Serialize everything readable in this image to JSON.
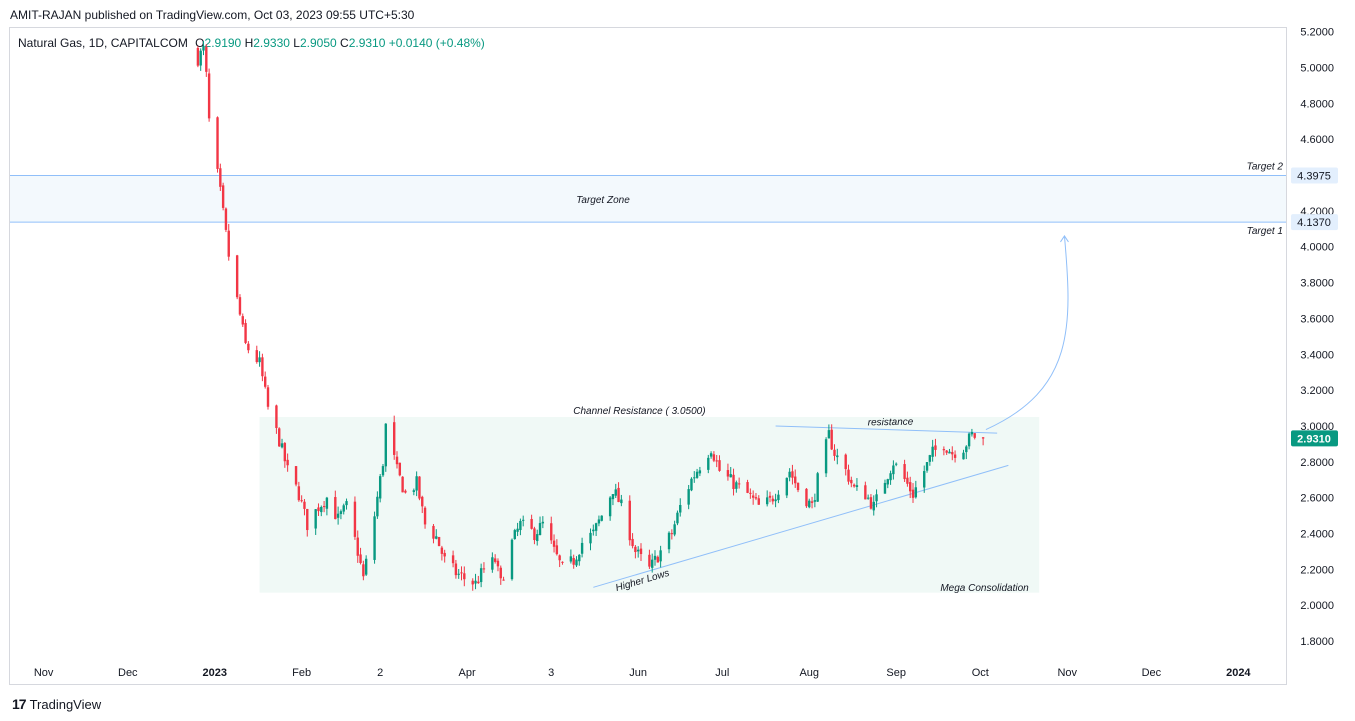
{
  "publisher_line": "AMIT-RAJAN published on TradingView.com, Oct 03, 2023 09:55 UTC+5:30",
  "legend": {
    "symbol": "Natural Gas, 1D, CAPITALCOM",
    "open_label": "O",
    "open": "2.9190",
    "high_label": "H",
    "high": "2.9330",
    "low_label": "L",
    "low": "2.9050",
    "close_label": "C",
    "close": "2.9310",
    "change": "+0.0140 (+0.48%)"
  },
  "footer_brand": "TradingView",
  "colors": {
    "up": "#089981",
    "down": "#f23645",
    "zone_line": "#90bff9",
    "zone_fill": "#f3f9fd",
    "consolidation_fill": "#f0f9f6",
    "trendline": "#90bff9",
    "price_badge": "#089981"
  },
  "chart_data": {
    "type": "candlestick",
    "title": "Natural Gas, 1D, CAPITALCOM",
    "x_ticks": [
      {
        "label": "Nov",
        "date": "2022-11-01",
        "bold": false
      },
      {
        "label": "Dec",
        "date": "2022-12-01",
        "bold": false
      },
      {
        "label": "2023",
        "date": "2023-01-01",
        "bold": true
      },
      {
        "label": "Feb",
        "date": "2023-02-01",
        "bold": false
      },
      {
        "label": "2",
        "date": "2023-03-01",
        "bold": false
      },
      {
        "label": "Apr",
        "date": "2023-04-01",
        "bold": false
      },
      {
        "label": "3",
        "date": "2023-05-01",
        "bold": false
      },
      {
        "label": "Jun",
        "date": "2023-06-01",
        "bold": false
      },
      {
        "label": "Jul",
        "date": "2023-07-01",
        "bold": false
      },
      {
        "label": "Aug",
        "date": "2023-08-01",
        "bold": false
      },
      {
        "label": "Sep",
        "date": "2023-09-01",
        "bold": false
      },
      {
        "label": "Oct",
        "date": "2023-10-01",
        "bold": false
      },
      {
        "label": "Nov",
        "date": "2023-11-01",
        "bold": false
      },
      {
        "label": "Dec",
        "date": "2023-12-01",
        "bold": false
      },
      {
        "label": "2024",
        "date": "2024-01-01",
        "bold": true
      }
    ],
    "y_ticks": [
      "5.2000",
      "5.0000",
      "4.8000",
      "4.6000",
      "4.2000",
      "4.0000",
      "3.8000",
      "3.6000",
      "3.4000",
      "3.2000",
      "3.0000",
      "2.8000",
      "2.6000",
      "2.4000",
      "2.2000",
      "2.0000",
      "1.8000"
    ],
    "ylim": [
      1.7,
      5.22
    ],
    "xlim": [
      "2022-10-20",
      "2024-01-18"
    ],
    "candles_anchor": [
      [
        "2022-12-26",
        5.05
      ],
      [
        "2022-12-28",
        5.1
      ],
      [
        "2022-12-29",
        4.95
      ],
      [
        "2022-12-30",
        4.7
      ],
      [
        "2023-01-03",
        4.3
      ],
      [
        "2023-01-06",
        3.95
      ],
      [
        "2023-01-09",
        3.7
      ],
      [
        "2023-01-12",
        3.45
      ],
      [
        "2023-01-17",
        3.35
      ],
      [
        "2023-01-20",
        3.1
      ],
      [
        "2023-01-24",
        2.92
      ],
      [
        "2023-01-27",
        2.75
      ],
      [
        "2023-01-31",
        2.62
      ],
      [
        "2023-02-03",
        2.45
      ],
      [
        "2023-02-07",
        2.55
      ],
      [
        "2023-02-10",
        2.6
      ],
      [
        "2023-02-14",
        2.48
      ],
      [
        "2023-02-17",
        2.55
      ],
      [
        "2023-02-21",
        2.3
      ],
      [
        "2023-02-23",
        2.15
      ],
      [
        "2023-02-27",
        2.5
      ],
      [
        "2023-03-02",
        2.8
      ],
      [
        "2023-03-03",
        3.0
      ],
      [
        "2023-03-07",
        2.75
      ],
      [
        "2023-03-10",
        2.62
      ],
      [
        "2023-03-14",
        2.68
      ],
      [
        "2023-03-17",
        2.45
      ],
      [
        "2023-03-21",
        2.38
      ],
      [
        "2023-03-24",
        2.25
      ],
      [
        "2023-03-28",
        2.18
      ],
      [
        "2023-03-31",
        2.15
      ],
      [
        "2023-04-04",
        2.12
      ],
      [
        "2023-04-07",
        2.2
      ],
      [
        "2023-04-11",
        2.25
      ],
      [
        "2023-04-13",
        2.12
      ],
      [
        "2023-04-17",
        2.35
      ],
      [
        "2023-04-20",
        2.45
      ],
      [
        "2023-04-25",
        2.4
      ],
      [
        "2023-04-28",
        2.45
      ],
      [
        "2023-05-02",
        2.3
      ],
      [
        "2023-05-05",
        2.2
      ],
      [
        "2023-05-09",
        2.25
      ],
      [
        "2023-05-12",
        2.35
      ],
      [
        "2023-05-16",
        2.4
      ],
      [
        "2023-05-19",
        2.5
      ],
      [
        "2023-05-23",
        2.65
      ],
      [
        "2023-05-26",
        2.55
      ],
      [
        "2023-05-31",
        2.3
      ],
      [
        "2023-06-05",
        2.2
      ],
      [
        "2023-06-09",
        2.3
      ],
      [
        "2023-06-13",
        2.4
      ],
      [
        "2023-06-16",
        2.55
      ],
      [
        "2023-06-20",
        2.7
      ],
      [
        "2023-06-23",
        2.78
      ],
      [
        "2023-06-27",
        2.88
      ],
      [
        "2023-06-30",
        2.75
      ],
      [
        "2023-07-05",
        2.68
      ],
      [
        "2023-07-10",
        2.62
      ],
      [
        "2023-07-14",
        2.55
      ],
      [
        "2023-07-18",
        2.58
      ],
      [
        "2023-07-21",
        2.65
      ],
      [
        "2023-07-25",
        2.75
      ],
      [
        "2023-07-28",
        2.65
      ],
      [
        "2023-08-02",
        2.55
      ],
      [
        "2023-08-04",
        2.7
      ],
      [
        "2023-08-08",
        2.95
      ],
      [
        "2023-08-10",
        2.85
      ],
      [
        "2023-08-14",
        2.75
      ],
      [
        "2023-08-17",
        2.65
      ],
      [
        "2023-08-21",
        2.62
      ],
      [
        "2023-08-24",
        2.55
      ],
      [
        "2023-08-28",
        2.7
      ],
      [
        "2023-08-31",
        2.8
      ],
      [
        "2023-09-04",
        2.7
      ],
      [
        "2023-09-07",
        2.62
      ],
      [
        "2023-09-11",
        2.75
      ],
      [
        "2023-09-14",
        2.85
      ],
      [
        "2023-09-18",
        2.9
      ],
      [
        "2023-09-21",
        2.85
      ],
      [
        "2023-09-25",
        2.88
      ],
      [
        "2023-09-28",
        2.95
      ],
      [
        "2023-10-02",
        2.92
      ],
      [
        "2023-10-03",
        2.931
      ]
    ],
    "horizontal_levels": [
      {
        "label": "Target 2",
        "value": 4.3975,
        "badge": "4.3975"
      },
      {
        "label": "Target 1",
        "value": 4.137,
        "badge": "4.1370"
      }
    ],
    "zone_label": "Target Zone",
    "consolidation_box": {
      "from": "2023-01-17",
      "to": "2023-10-22",
      "low": 2.07,
      "high": 3.05,
      "label": "Mega Consolidation"
    },
    "channel_resistance": {
      "label": "Channel Resistance ( 3.0500)",
      "value": 3.05
    },
    "resistance_line": {
      "label": "resistance",
      "points": [
        [
          "2023-07-20",
          3.0
        ],
        [
          "2023-10-07",
          2.96
        ]
      ]
    },
    "higher_lows_line": {
      "label": "Higher Lows",
      "points": [
        [
          "2023-05-16",
          2.1
        ],
        [
          "2023-10-11",
          2.78
        ]
      ]
    },
    "current_price": {
      "value": 2.931,
      "badge": "2.9310"
    },
    "projection_arrow": {
      "from": [
        "2023-10-03",
        2.98
      ],
      "to": [
        "2023-10-31",
        4.06
      ]
    }
  }
}
